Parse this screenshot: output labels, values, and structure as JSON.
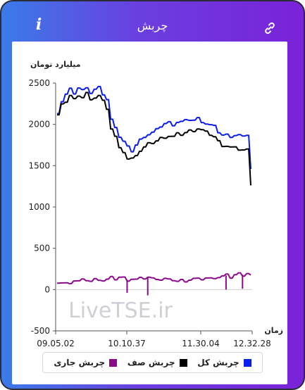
{
  "header": {
    "title": "چربش",
    "info_icon": "info-icon",
    "link_icon": "link-icon"
  },
  "chart_data": {
    "type": "line",
    "ylabel": "میلیارد تومان",
    "xlabel": "زمان",
    "ylim": [
      -500,
      2500
    ],
    "yticks": [
      2500,
      2000,
      1500,
      1000,
      500,
      0,
      -500
    ],
    "xticks": [
      "09.05.02",
      "10.10.37",
      "11.30.04",
      "12.32.28"
    ],
    "watermark": "LiveTSE.ir",
    "series": [
      {
        "name": "چربش کل",
        "color": "#0a1cf0",
        "values": [
          2150,
          2280,
          2360,
          2420,
          2380,
          2440,
          2410,
          2460,
          2380,
          2420,
          2440,
          2370,
          2300,
          2050,
          1980,
          1850,
          1790,
          1720,
          1680,
          1750,
          1810,
          1860,
          1880,
          1900,
          1930,
          1980,
          2010,
          2020,
          2000,
          2030,
          2030,
          2040,
          2060,
          2050,
          2070,
          2040,
          2010,
          1990,
          1970,
          1910,
          1870,
          1870,
          1860,
          1870,
          1870,
          1840,
          1880,
          1460
        ]
      },
      {
        "name": "چربش صف",
        "color": "#000000",
        "values": [
          2110,
          2230,
          2280,
          2350,
          2300,
          2360,
          2330,
          2380,
          2280,
          2330,
          2350,
          2280,
          2200,
          1950,
          1850,
          1700,
          1670,
          1580,
          1580,
          1640,
          1680,
          1720,
          1760,
          1780,
          1800,
          1830,
          1850,
          1860,
          1850,
          1880,
          1880,
          1900,
          1920,
          1930,
          1950,
          1930,
          1900,
          1880,
          1850,
          1790,
          1750,
          1740,
          1720,
          1710,
          1700,
          1690,
          1690,
          1280
        ]
      },
      {
        "name": "چربش جاری",
        "color": "#8a0a8a",
        "values": [
          90,
          80,
          70,
          90,
          110,
          100,
          110,
          120,
          100,
          120,
          130,
          110,
          120,
          140,
          130,
          150,
          140,
          120,
          130,
          120,
          130,
          140,
          150,
          130,
          140,
          120,
          130,
          110,
          120,
          100,
          110,
          110,
          120,
          130,
          120,
          130,
          140,
          130,
          150,
          150,
          160,
          170,
          150,
          180,
          190,
          180,
          200,
          170
        ],
        "dips": [
          {
            "at": 17,
            "value": -40
          },
          {
            "at": 22,
            "value": -70
          },
          {
            "at": 41,
            "value": 0
          },
          {
            "at": 45,
            "value": 10
          }
        ]
      }
    ],
    "legend_position": "bottom"
  }
}
